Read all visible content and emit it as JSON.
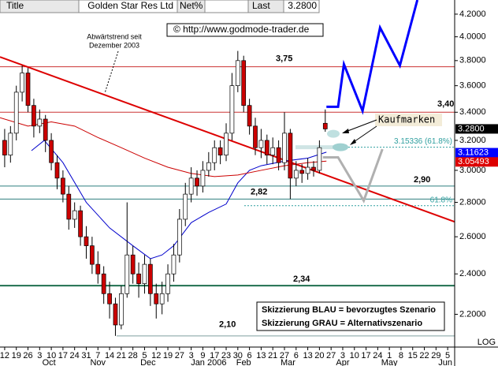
{
  "chart_data": {
    "type": "candlestick",
    "log_scale": true,
    "header": {
      "title_label": "Title",
      "name": "Golden Star Res Ltd",
      "net_label": "Net%",
      "last_label": "Last",
      "last_value": "3.2800"
    },
    "annotations": {
      "copyright": "© http://www.godmode-trader.de",
      "trend_note_1": "Abwärtstrend seit",
      "trend_note_2": "Dezember 2003",
      "buy_marks": "Kaufmarken",
      "scenario_blue": "Skizzierung BLAU = bevorzugtes Szenario",
      "scenario_gray": "Skizzierung GRAU = Alternativszenario",
      "log_label": "LOG"
    },
    "xlim": [
      -0.4,
      38.6
    ],
    "ylim": [
      2.05,
      4.33
    ],
    "yticks": [
      {
        "value": 2.2,
        "label": "2.2000"
      },
      {
        "value": 2.4,
        "label": "2.4000"
      },
      {
        "value": 2.6,
        "label": "2.6000"
      },
      {
        "value": 2.8,
        "label": "2.8000"
      },
      {
        "value": 3.0,
        "label": "3.0000"
      },
      {
        "value": 3.2,
        "label": "3.2000"
      },
      {
        "value": 3.4,
        "label": "3.4000"
      },
      {
        "value": 3.6,
        "label": "3.6000"
      },
      {
        "value": 3.8,
        "label": "3.8000"
      },
      {
        "value": 4.0,
        "label": "4.0000"
      },
      {
        "value": 4.2,
        "label": "4.2000"
      }
    ],
    "xticks": [
      {
        "value": 0,
        "label": "12"
      },
      {
        "value": 1,
        "label": "19"
      },
      {
        "value": 2,
        "label": "26"
      },
      {
        "value": 3,
        "label": "3"
      },
      {
        "value": 4,
        "label": "10"
      },
      {
        "value": 5,
        "label": "17"
      },
      {
        "value": 6,
        "label": "24"
      },
      {
        "value": 7,
        "label": "31"
      },
      {
        "value": 8,
        "label": "7"
      },
      {
        "value": 9,
        "label": "14"
      },
      {
        "value": 10,
        "label": "21"
      },
      {
        "value": 11,
        "label": "28"
      },
      {
        "value": 12,
        "label": "5"
      },
      {
        "value": 13,
        "label": "12"
      },
      {
        "value": 14,
        "label": "19"
      },
      {
        "value": 15,
        "label": "27"
      },
      {
        "value": 16,
        "label": "3"
      },
      {
        "value": 17,
        "label": "9"
      },
      {
        "value": 18,
        "label": "17"
      },
      {
        "value": 19,
        "label": "23"
      },
      {
        "value": 20,
        "label": "30"
      },
      {
        "value": 21,
        "label": "6"
      },
      {
        "value": 22,
        "label": "13"
      },
      {
        "value": 23,
        "label": "21"
      },
      {
        "value": 24,
        "label": "27"
      },
      {
        "value": 25,
        "label": "6"
      },
      {
        "value": 26,
        "label": "13"
      },
      {
        "value": 27,
        "label": "20"
      },
      {
        "value": 28,
        "label": "27"
      },
      {
        "value": 29,
        "label": "3"
      },
      {
        "value": 30,
        "label": "10"
      },
      {
        "value": 31,
        "label": "17"
      },
      {
        "value": 32,
        "label": "24"
      },
      {
        "value": 33,
        "label": "1"
      },
      {
        "value": 34,
        "label": "8"
      },
      {
        "value": 35,
        "label": "15"
      },
      {
        "value": 36,
        "label": "22"
      },
      {
        "value": 37,
        "label": "29"
      },
      {
        "value": 38,
        "label": "5"
      }
    ],
    "month_ticks": [
      {
        "value": 3.8,
        "label": "Oct"
      },
      {
        "value": 8.0,
        "label": "Nov"
      },
      {
        "value": 12.3,
        "label": "Dec"
      },
      {
        "value": 17.5,
        "label": "Jan 2006"
      },
      {
        "value": 20.5,
        "label": "Feb"
      },
      {
        "value": 24.3,
        "label": "Mar"
      },
      {
        "value": 29.0,
        "label": "Apr"
      },
      {
        "value": 33.0,
        "label": "May"
      },
      {
        "value": 37.8,
        "label": "Jun"
      }
    ],
    "x": [
      0,
      0.5,
      1,
      1.5,
      2,
      2.5,
      3,
      3.5,
      4,
      4.5,
      5,
      5.5,
      6,
      6.5,
      7,
      7.5,
      8,
      8.5,
      9,
      9.5,
      10,
      10.5,
      11,
      11.5,
      12,
      12.5,
      13,
      13.5,
      14,
      14.5,
      15,
      15.5,
      16,
      16.5,
      17,
      17.5,
      18,
      18.5,
      19,
      19.5,
      20,
      20.5,
      21,
      21.5,
      22,
      22.5,
      23,
      23.5,
      24,
      24.5,
      25,
      25.5,
      26,
      26.5,
      27,
      27.5
    ],
    "open": [
      3.2,
      3.1,
      3.25,
      3.55,
      3.7,
      3.45,
      3.3,
      3.35,
      3.2,
      3.05,
      2.95,
      2.85,
      2.7,
      2.75,
      2.6,
      2.55,
      2.45,
      2.4,
      2.3,
      2.25,
      2.15,
      2.3,
      2.5,
      2.4,
      2.35,
      2.45,
      2.3,
      2.25,
      2.3,
      2.4,
      2.5,
      2.7,
      2.85,
      2.95,
      2.9,
      3.0,
      3.05,
      3.15,
      3.1,
      3.25,
      3.6,
      3.8,
      3.45,
      3.3,
      3.15,
      3.2,
      3.1,
      3.15,
      3.05,
      3.25,
      2.95,
      3.0,
      2.98,
      3.02,
      3.0,
      3.32
    ],
    "high": [
      3.28,
      3.3,
      3.6,
      3.76,
      3.74,
      3.5,
      3.42,
      3.38,
      3.25,
      3.1,
      3.0,
      2.9,
      2.8,
      2.78,
      2.66,
      2.6,
      2.52,
      2.44,
      2.36,
      2.28,
      2.34,
      2.8,
      2.55,
      2.46,
      2.5,
      2.48,
      2.35,
      2.36,
      2.45,
      2.56,
      2.76,
      2.92,
      3.02,
      3.0,
      3.06,
      3.12,
      3.2,
      3.2,
      3.32,
      3.7,
      3.88,
      3.84,
      3.5,
      3.36,
      3.28,
      3.24,
      3.22,
      3.2,
      3.4,
      3.28,
      3.06,
      3.04,
      3.08,
      3.06,
      3.2,
      3.42
    ],
    "low": [
      3.02,
      3.05,
      3.2,
      3.48,
      3.4,
      3.22,
      3.25,
      3.12,
      3.0,
      2.88,
      2.8,
      2.64,
      2.65,
      2.55,
      2.48,
      2.4,
      2.35,
      2.25,
      2.18,
      2.1,
      2.13,
      2.28,
      2.35,
      2.28,
      2.3,
      2.24,
      2.18,
      2.2,
      2.26,
      2.36,
      2.46,
      2.66,
      2.8,
      2.84,
      2.86,
      2.96,
      3.0,
      3.04,
      3.06,
      3.2,
      3.55,
      3.4,
      3.24,
      3.1,
      3.08,
      3.04,
      3.04,
      3.0,
      3.0,
      2.82,
      2.9,
      2.92,
      2.94,
      2.96,
      2.98,
      3.26
    ],
    "close": [
      3.1,
      3.25,
      3.55,
      3.7,
      3.45,
      3.3,
      3.35,
      3.2,
      3.05,
      2.95,
      2.85,
      2.7,
      2.75,
      2.6,
      2.55,
      2.45,
      2.4,
      2.3,
      2.25,
      2.15,
      2.3,
      2.5,
      2.4,
      2.35,
      2.45,
      2.3,
      2.25,
      2.3,
      2.4,
      2.5,
      2.7,
      2.85,
      2.95,
      2.9,
      3.0,
      3.05,
      3.15,
      3.1,
      3.25,
      3.6,
      3.8,
      3.45,
      3.3,
      3.15,
      3.2,
      3.1,
      3.15,
      3.05,
      3.25,
      2.95,
      3.0,
      2.98,
      3.02,
      3.0,
      3.15,
      3.28
    ],
    "up_color": "#ffffff",
    "down_color": "#cc0000",
    "moving_averages": [
      {
        "color": "#0000cc",
        "x": [
          2.3,
          3.4,
          5,
          7,
          9,
          11,
          12.5,
          13.5,
          14.5,
          16,
          17.5,
          19,
          20,
          21,
          22,
          24,
          26,
          27.6
        ],
        "values": [
          3.13,
          3.2,
          3.05,
          2.8,
          2.65,
          2.55,
          2.48,
          2.5,
          2.55,
          2.68,
          2.74,
          2.79,
          2.92,
          3.0,
          3.03,
          3.06,
          3.08,
          3.12
        ]
      },
      {
        "color": "#cc0000",
        "x": [
          -0.4,
          2,
          4,
          6,
          8,
          10,
          12,
          14,
          16,
          18,
          20,
          22,
          24,
          26,
          27.6
        ],
        "values": [
          3.36,
          3.3,
          3.33,
          3.3,
          3.22,
          3.15,
          3.08,
          3.02,
          2.98,
          2.96,
          2.97,
          3.0,
          3.03,
          3.05,
          3.06
        ]
      }
    ],
    "trendline": {
      "color": "#dd0000",
      "x": [
        -0.4,
        38.6
      ],
      "values": [
        3.83,
        2.685
      ]
    },
    "levels": [
      {
        "value": 3.75,
        "label": "3,75",
        "color": "#cc3333"
      },
      {
        "value": 3.4,
        "label": "3,40",
        "color": "#cc3333"
      },
      {
        "value": 2.9,
        "label": "2,90",
        "color": "#2f7f7f"
      },
      {
        "value": 2.82,
        "label": "2,82",
        "color": "#2f7f7f"
      },
      {
        "value": 2.34,
        "label": "2,34",
        "color": "#1f6f4f"
      },
      {
        "value": 2.1,
        "label": "2,10",
        "color": "#7f9f9f"
      }
    ],
    "fib_levels": [
      {
        "value": 3.15336,
        "label": "3.15336 (61.8%)",
        "color": "#2f9f9f"
      },
      {
        "value": 2.78,
        "label": "61.8%",
        "color": "#2f9f9f"
      }
    ],
    "scenarios": [
      {
        "color": "#0000ff",
        "x": [
          27.6,
          28.6,
          29.1,
          30.7,
          32.2,
          33.9,
          35.4
        ],
        "values": [
          3.44,
          3.44,
          3.77,
          3.41,
          4.08,
          3.76,
          4.33
        ]
      },
      {
        "color": "#b0b0b0",
        "x": [
          27.3,
          28.6,
          30.8,
          32.4
        ],
        "values": [
          3.085,
          3.085,
          2.81,
          3.14
        ]
      }
    ],
    "price_boxes": [
      {
        "value": 3.28,
        "label": "3.2800",
        "color": "#000000"
      },
      {
        "value": 3.11623,
        "label": "3.11623",
        "color": "#0000ff"
      },
      {
        "value": 3.05493,
        "label": "3.05493",
        "color": "#dd0000"
      }
    ]
  }
}
